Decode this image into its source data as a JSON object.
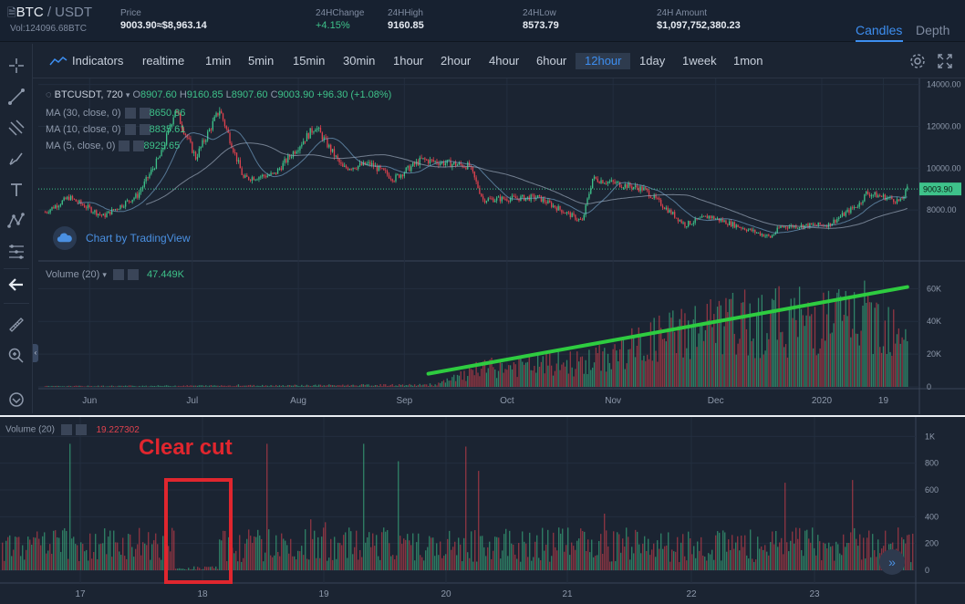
{
  "ticker": {
    "base": "BTC",
    "separator": " / ",
    "quote": "USDT",
    "volume": "Vol:124096.68BTC",
    "price_label": "Price",
    "price_value": "9003.90≈$8,963.14",
    "change_label": "24HChange",
    "change_value": "+4.15%",
    "high_label": "24HHigh",
    "high_value": "9160.85",
    "low_label": "24HLow",
    "low_value": "8573.79",
    "amount_label": "24H Amount",
    "amount_value": "$1,097,752,380.23",
    "tab_candles": "Candles",
    "tab_depth": "Depth"
  },
  "toolbar": {
    "indicators": "Indicators",
    "intervals": [
      "realtime",
      "1min",
      "5min",
      "15min",
      "30min",
      "1hour",
      "2hour",
      "4hour",
      "6hour",
      "12hour",
      "1day",
      "1week",
      "1mon"
    ],
    "active_interval": "12hour"
  },
  "legend": {
    "symbol": "BTCUSDT, 720",
    "o_label": "O",
    "open": "8907.60",
    "h_label": "H",
    "high": "9160.85",
    "l_label": "L",
    "low": "8907.60",
    "c_label": "C",
    "close": "9003.90",
    "change": "+96.30 (+1.08%)",
    "ma30": "MA (30, close, 0)",
    "ma30_value": "8650.86",
    "ma10": "MA (10, close, 0)",
    "ma10_value": "8835.61",
    "ma5": "MA (5, close, 0)",
    "ma5_value": "8929.65",
    "volume_label": "Volume (20)",
    "volume_value": "47.449K",
    "tv_badge": "Chart by TradingView"
  },
  "lower": {
    "volume_label": "Volume (20)",
    "volume_value": "19.227302",
    "annotation": "Clear cut"
  },
  "colors": {
    "up": "#3ec28a",
    "down": "#e0424e",
    "trend_line": "#2ecc40",
    "accent": "#3d8ef0",
    "annotation": "#e0262e"
  },
  "chart_data": [
    {
      "type": "candlestick",
      "title": "BTCUSDT, 720",
      "last_price": "9003.90",
      "y_ticks": [
        "14000.00",
        "12000.00",
        "10000.00",
        "8000.00"
      ],
      "ylim": [
        6000,
        14200
      ],
      "x_ticks": [
        "Jun",
        "Jul",
        "Aug",
        "Sep",
        "Oct",
        "Nov",
        "Dec",
        "2020",
        "19"
      ],
      "price_path": [
        {
          "date": "2019-05-19",
          "price": 7900
        },
        {
          "date": "2019-05-26",
          "price": 8600
        },
        {
          "date": "2019-06-05",
          "price": 7700
        },
        {
          "date": "2019-06-15",
          "price": 8700
        },
        {
          "date": "2019-06-22",
          "price": 10700
        },
        {
          "date": "2019-06-26",
          "price": 12800
        },
        {
          "date": "2019-07-02",
          "price": 10500
        },
        {
          "date": "2019-07-09",
          "price": 12800
        },
        {
          "date": "2019-07-16",
          "price": 9500
        },
        {
          "date": "2019-07-25",
          "price": 9700
        },
        {
          "date": "2019-08-06",
          "price": 12000
        },
        {
          "date": "2019-08-14",
          "price": 10000
        },
        {
          "date": "2019-08-22",
          "price": 10200
        },
        {
          "date": "2019-08-29",
          "price": 9500
        },
        {
          "date": "2019-09-06",
          "price": 10400
        },
        {
          "date": "2019-09-20",
          "price": 10100
        },
        {
          "date": "2019-09-24",
          "price": 8500
        },
        {
          "date": "2019-10-10",
          "price": 8600
        },
        {
          "date": "2019-10-23",
          "price": 7450
        },
        {
          "date": "2019-10-26",
          "price": 9500
        },
        {
          "date": "2019-11-10",
          "price": 9000
        },
        {
          "date": "2019-11-22",
          "price": 7300
        },
        {
          "date": "2019-11-29",
          "price": 7700
        },
        {
          "date": "2019-12-17",
          "price": 6700
        },
        {
          "date": "2019-12-20",
          "price": 7200
        },
        {
          "date": "2020-01-03",
          "price": 7300
        },
        {
          "date": "2020-01-12",
          "price": 8300
        },
        {
          "date": "2020-01-14",
          "price": 8800
        },
        {
          "date": "2020-01-20",
          "price": 8600
        },
        {
          "date": "2020-01-24",
          "price": 8400
        },
        {
          "date": "2020-01-26",
          "price": 9003.9
        }
      ],
      "moving_averages": [
        "MA (30, close, 0)",
        "MA (10, close, 0)",
        "MA (5, close, 0)"
      ]
    },
    {
      "type": "bar",
      "title": "Volume (20)",
      "y_ticks": [
        "60K",
        "40K",
        "20K",
        "0"
      ],
      "ylim": [
        0,
        68000
      ],
      "trend": "rising",
      "trend_line": [
        {
          "date": "2019-09-08",
          "value": 8000
        },
        {
          "date": "2020-01-26",
          "value": 61000
        }
      ],
      "profile": [
        {
          "date": "2019-05-19",
          "value": 500
        },
        {
          "date": "2019-09-10",
          "value": 1500
        },
        {
          "date": "2019-09-25",
          "value": 14000
        },
        {
          "date": "2019-10-26",
          "value": 19000
        },
        {
          "date": "2019-11-22",
          "value": 43000
        },
        {
          "date": "2019-12-17",
          "value": 50000
        },
        {
          "date": "2020-01-14",
          "value": 52000
        },
        {
          "date": "2020-01-26",
          "value": 47449
        }
      ]
    },
    {
      "type": "bar",
      "title": "Volume (20)",
      "y_ticks": [
        "1K",
        "800",
        "600",
        "400",
        "200",
        "0"
      ],
      "ylim": [
        0,
        1050
      ],
      "x_ticks": [
        "17",
        "18",
        "19",
        "20",
        "21",
        "22",
        "23"
      ],
      "gap_region": [
        "17 ~18:30",
        "18 ~01:00"
      ],
      "typical_value": 200,
      "last_value": 19.227302
    }
  ]
}
